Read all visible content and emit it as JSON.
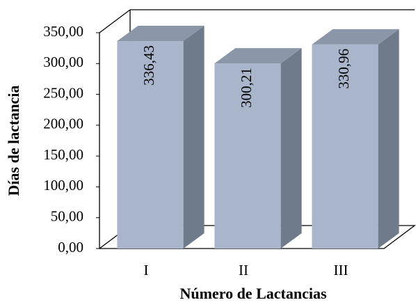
{
  "chart_data": {
    "type": "bar3d",
    "x_label": "Número de Lactancias",
    "y_label": "Días de lactancia",
    "categories": [
      "I",
      "II",
      "III"
    ],
    "values": [
      336.43,
      300.21,
      330.96
    ],
    "value_labels": [
      "336,43",
      "300,21",
      "330,96"
    ],
    "color": "#a9b5cb",
    "ylim": [
      0,
      350
    ],
    "yticks": [
      {
        "value": 0,
        "label": "0,00"
      },
      {
        "value": 50,
        "label": "50,00"
      },
      {
        "value": 100,
        "label": "100,00"
      },
      {
        "value": 150,
        "label": "150,00"
      },
      {
        "value": 200,
        "label": "200,00"
      },
      {
        "value": 250,
        "label": "250,00"
      },
      {
        "value": 300,
        "label": "300,00"
      },
      {
        "value": 350,
        "label": "350,00"
      }
    ],
    "grid": false
  }
}
